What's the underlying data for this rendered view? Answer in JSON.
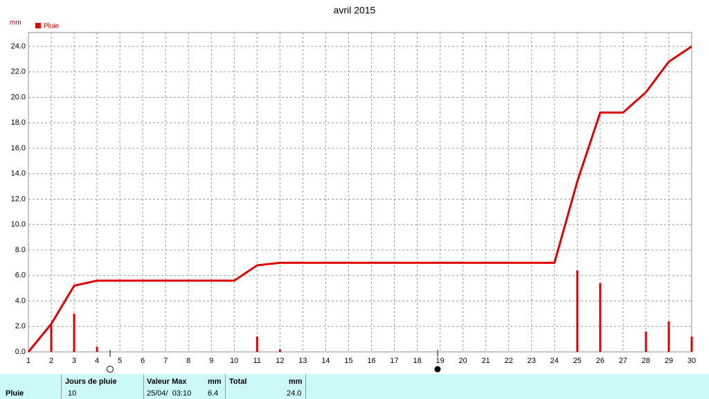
{
  "chart_data": {
    "type": "bar-line",
    "title": "avril 2015",
    "y_unit": "mm",
    "x": [
      1,
      2,
      3,
      4,
      5,
      6,
      7,
      8,
      9,
      10,
      11,
      12,
      13,
      14,
      15,
      16,
      17,
      18,
      19,
      20,
      21,
      22,
      23,
      24,
      25,
      26,
      27,
      28,
      29,
      30
    ],
    "xlim": [
      1,
      30
    ],
    "xticks": [
      1,
      2,
      3,
      4,
      5,
      6,
      7,
      8,
      9,
      10,
      11,
      12,
      13,
      14,
      15,
      16,
      17,
      18,
      19,
      20,
      21,
      22,
      23,
      24,
      25,
      26,
      27,
      28,
      29,
      30
    ],
    "ylim": [
      0,
      24
    ],
    "yticks": [
      {
        "value": 0,
        "label": "0.0"
      },
      {
        "value": 2,
        "label": "2.0"
      },
      {
        "value": 4,
        "label": "4.0"
      },
      {
        "value": 6,
        "label": "6.0"
      },
      {
        "value": 8,
        "label": "8.0"
      },
      {
        "value": 10,
        "label": "10.0"
      },
      {
        "value": 12,
        "label": "12.0"
      },
      {
        "value": 14,
        "label": "14.0"
      },
      {
        "value": 16,
        "label": "16.0"
      },
      {
        "value": 18,
        "label": "18.0"
      },
      {
        "value": 20,
        "label": "20.0"
      },
      {
        "value": 22,
        "label": "22.0"
      },
      {
        "value": 24,
        "label": "24.0"
      }
    ],
    "grid": true,
    "series": [
      {
        "name": "Pluie",
        "color": "#e00000",
        "kind": "bar",
        "values": [
          0,
          2.2,
          3.0,
          0.4,
          0,
          0,
          0,
          0,
          0,
          0,
          1.2,
          0.2,
          0,
          0,
          0,
          0,
          0,
          0,
          0,
          0,
          0,
          0,
          0,
          0,
          6.4,
          5.4,
          0,
          1.6,
          2.4,
          1.2
        ]
      },
      {
        "color": "#e00000",
        "kind": "line",
        "values": [
          0,
          2.2,
          5.2,
          5.6,
          5.6,
          5.6,
          5.6,
          5.6,
          5.6,
          5.6,
          6.8,
          7.0,
          7.0,
          7.0,
          7.0,
          7.0,
          7.0,
          7.0,
          7.0,
          7.0,
          7.0,
          7.0,
          7.0,
          7.0,
          13.4,
          18.8,
          18.8,
          20.4,
          22.8,
          24.0
        ]
      }
    ]
  },
  "table": {
    "row_label": "Pluie",
    "headers": [
      "Jours de pluie",
      "Valeur Max",
      "mm",
      "Total",
      "mm"
    ],
    "values": [
      "10",
      "25/04/  03:10",
      "6.4",
      "24.0"
    ]
  }
}
